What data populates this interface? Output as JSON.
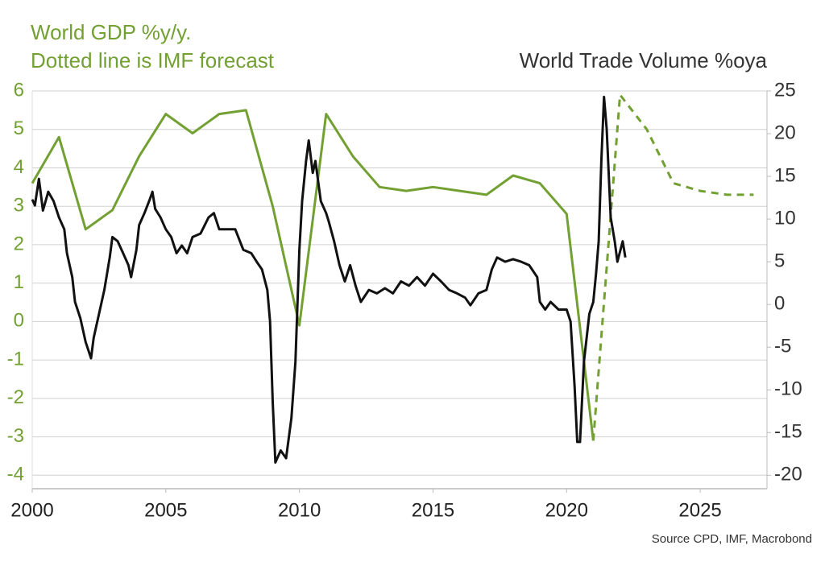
{
  "chart_data": {
    "type": "line",
    "title": "World GDP %y/y.",
    "subtitle": "Dotted line is IMF forecast",
    "y2_label": "World Trade Volume %oya",
    "source": "Source CPD, IMF, Macrobond",
    "xlim": [
      2000,
      2027.5
    ],
    "xticks": [
      2000,
      2005,
      2010,
      2015,
      2020,
      2025
    ],
    "ylim": [
      -4.35,
      6
    ],
    "yticks": [
      6,
      5,
      4,
      3,
      2,
      1,
      0,
      -1,
      -2,
      -3,
      -4
    ],
    "y2lim": [
      -21.575,
      25
    ],
    "y2ticks": [
      25,
      20,
      15,
      10,
      5,
      0,
      -5,
      -10,
      -15,
      -20
    ],
    "grid": true,
    "y_color": "#72a032",
    "y2_color": "#333333",
    "series": [
      {
        "color": "#72a032",
        "axis": "y",
        "dashed": false,
        "x": [
          2000,
          2001,
          2002,
          2003,
          2004,
          2005,
          2006,
          2007,
          2008,
          2009,
          2010,
          2011,
          2012,
          2013,
          2014,
          2015,
          2016,
          2017,
          2018,
          2019,
          2020,
          2021
        ],
        "values": [
          3.6,
          4.8,
          2.4,
          2.9,
          4.3,
          5.4,
          4.9,
          5.4,
          5.5,
          3.0,
          -0.1,
          5.4,
          4.3,
          3.5,
          3.4,
          3.5,
          3.4,
          3.3,
          3.8,
          3.6,
          2.8,
          -3.1
        ]
      },
      {
        "color": "#72a032",
        "axis": "y",
        "dashed": true,
        "x": [
          2021,
          2022,
          2023,
          2024,
          2025,
          2026,
          2027
        ],
        "values": [
          -3.1,
          5.9,
          5.0,
          3.6,
          3.4,
          3.3,
          3.3
        ]
      },
      {
        "color": "#111111",
        "axis": "y2",
        "dashed": false,
        "x": [
          2000.0,
          2000.1,
          2000.25,
          2000.4,
          2000.6,
          2000.8,
          2001.0,
          2001.2,
          2001.3,
          2001.5,
          2001.6,
          2001.8,
          2002.0,
          2002.2,
          2002.3,
          2002.5,
          2002.7,
          2002.9,
          2003.0,
          2003.2,
          2003.4,
          2003.6,
          2003.7,
          2003.9,
          2004.0,
          2004.2,
          2004.4,
          2004.5,
          2004.6,
          2004.8,
          2005.0,
          2005.2,
          2005.4,
          2005.6,
          2005.8,
          2006.0,
          2006.3,
          2006.6,
          2006.8,
          2007.0,
          2007.3,
          2007.6,
          2007.9,
          2008.2,
          2008.4,
          2008.6,
          2008.8,
          2008.9,
          2009.0,
          2009.1,
          2009.3,
          2009.5,
          2009.7,
          2009.85,
          2010.0,
          2010.1,
          2010.25,
          2010.35,
          2010.5,
          2010.6,
          2010.8,
          2011.0,
          2011.1,
          2011.3,
          2011.5,
          2011.7,
          2011.9,
          2012.1,
          2012.3,
          2012.6,
          2012.9,
          2013.2,
          2013.5,
          2013.8,
          2014.1,
          2014.4,
          2014.7,
          2015.0,
          2015.3,
          2015.6,
          2015.9,
          2016.2,
          2016.4,
          2016.7,
          2017.0,
          2017.2,
          2017.4,
          2017.7,
          2018.0,
          2018.3,
          2018.6,
          2018.9,
          2019.0,
          2019.2,
          2019.4,
          2019.7,
          2019.9,
          2020.0,
          2020.15,
          2020.3,
          2020.4,
          2020.5,
          2020.65,
          2020.85,
          2021.0,
          2021.1,
          2021.2,
          2021.3,
          2021.4,
          2021.5,
          2021.65,
          2021.8,
          2021.9,
          2022.1,
          2022.2
        ],
        "values": [
          12.3,
          11.6,
          14.7,
          11.0,
          13.2,
          12.1,
          10.2,
          8.8,
          6.0,
          3.2,
          0.3,
          -1.6,
          -4.4,
          -6.3,
          -3.9,
          -1.1,
          1.7,
          5.5,
          7.9,
          7.4,
          6.0,
          4.6,
          3.2,
          6.4,
          9.3,
          10.7,
          12.3,
          13.2,
          11.2,
          10.2,
          8.8,
          7.9,
          6.0,
          6.9,
          6.0,
          7.9,
          8.3,
          10.2,
          10.7,
          8.8,
          8.8,
          8.8,
          6.4,
          6.0,
          5.0,
          4.1,
          1.7,
          -2.0,
          -11.4,
          -18.5,
          -17.1,
          -18.0,
          -13.3,
          -6.7,
          6.4,
          12.1,
          16.8,
          19.2,
          15.4,
          16.8,
          12.1,
          10.7,
          9.7,
          7.4,
          4.6,
          2.7,
          4.6,
          2.2,
          0.3,
          1.7,
          1.3,
          1.9,
          1.3,
          2.7,
          2.2,
          3.2,
          2.2,
          3.6,
          2.7,
          1.7,
          1.3,
          0.8,
          -0.1,
          1.3,
          1.7,
          4.1,
          5.5,
          5.0,
          5.3,
          5.0,
          4.6,
          3.2,
          0.3,
          -0.6,
          0.3,
          -0.6,
          -0.6,
          -0.6,
          -2.0,
          -9.6,
          -16.1,
          -16.1,
          -6.7,
          -1.1,
          0.3,
          3.6,
          7.4,
          16.8,
          24.3,
          20.6,
          10.2,
          7.4,
          5.0,
          7.4,
          5.5
        ]
      }
    ]
  }
}
